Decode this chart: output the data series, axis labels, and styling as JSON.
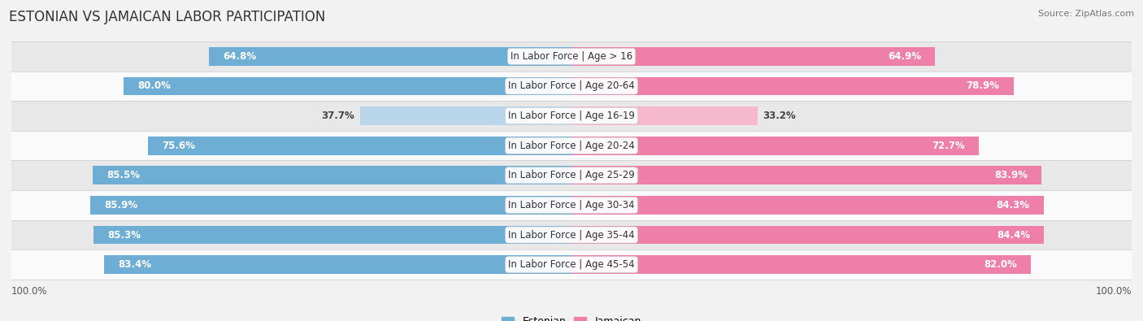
{
  "title": "ESTONIAN VS JAMAICAN LABOR PARTICIPATION",
  "source": "Source: ZipAtlas.com",
  "categories": [
    "In Labor Force | Age > 16",
    "In Labor Force | Age 20-64",
    "In Labor Force | Age 16-19",
    "In Labor Force | Age 20-24",
    "In Labor Force | Age 25-29",
    "In Labor Force | Age 30-34",
    "In Labor Force | Age 35-44",
    "In Labor Force | Age 45-54"
  ],
  "estonian_values": [
    64.8,
    80.0,
    37.7,
    75.6,
    85.5,
    85.9,
    85.3,
    83.4
  ],
  "jamaican_values": [
    64.9,
    78.9,
    33.2,
    72.7,
    83.9,
    84.3,
    84.4,
    82.0
  ],
  "max_value": 100.0,
  "estonian_color": "#6eadd4",
  "estonian_color_light": "#b8d5ea",
  "jamaican_color": "#ed7fa8",
  "jamaican_color_light": "#f5b8cc",
  "bg_color": "#f2f2f2",
  "row_bg_light": "#fafafa",
  "row_bg_dark": "#e8e8e8",
  "title_fontsize": 12,
  "source_fontsize": 8,
  "legend_fontsize": 9,
  "value_fontsize": 8.5,
  "cat_fontsize": 8.5
}
